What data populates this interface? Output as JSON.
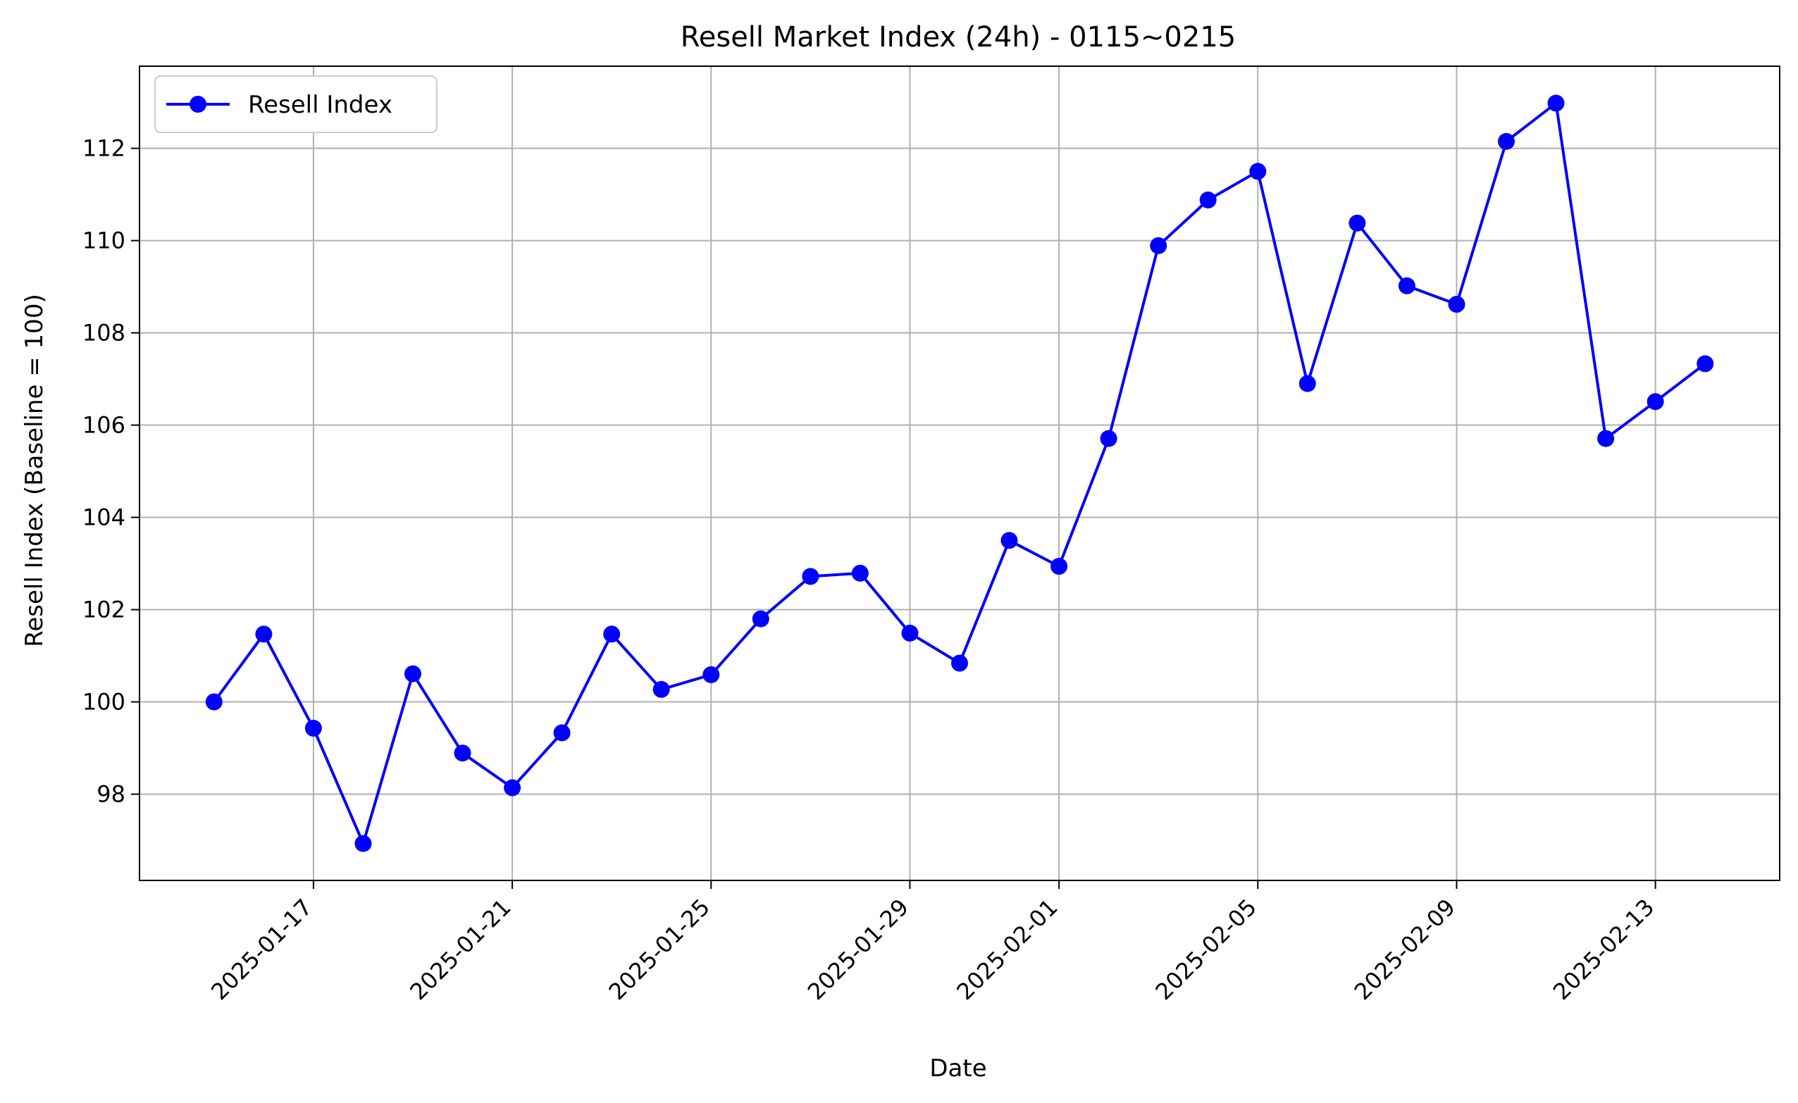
{
  "chart_data": {
    "type": "line",
    "title": "Resell Market Index (24h) - 0115~0215",
    "xlabel": "Date",
    "ylabel": "Resell Index (Baseline = 100)",
    "x": [
      "2025-01-15",
      "2025-01-16",
      "2025-01-17",
      "2025-01-18",
      "2025-01-19",
      "2025-01-20",
      "2025-01-21",
      "2025-01-22",
      "2025-01-23",
      "2025-01-24",
      "2025-01-25",
      "2025-01-26",
      "2025-01-27",
      "2025-01-28",
      "2025-01-29",
      "2025-01-30",
      "2025-01-31",
      "2025-02-01",
      "2025-02-02",
      "2025-02-03",
      "2025-02-04",
      "2025-02-05",
      "2025-02-06",
      "2025-02-07",
      "2025-02-08",
      "2025-02-09",
      "2025-02-10",
      "2025-02-11",
      "2025-02-12",
      "2025-02-13",
      "2025-02-14"
    ],
    "series": [
      {
        "name": "Resell Index",
        "color": "#0000ff",
        "marker": "circle",
        "values": [
          100.0,
          101.47,
          99.43,
          96.93,
          100.61,
          98.89,
          98.14,
          99.33,
          101.47,
          100.27,
          100.59,
          101.8,
          102.72,
          102.79,
          101.49,
          100.84,
          103.5,
          102.94,
          105.71,
          109.89,
          110.88,
          111.5,
          106.9,
          110.38,
          109.02,
          108.62,
          112.15,
          112.98,
          105.71,
          106.51,
          107.33
        ]
      }
    ],
    "x_ticks": [
      "2025-01-17",
      "2025-01-21",
      "2025-01-25",
      "2025-01-29",
      "2025-02-01",
      "2025-02-05",
      "2025-02-09",
      "2025-02-13"
    ],
    "y_ticks": [
      98,
      100,
      102,
      104,
      106,
      108,
      110,
      112
    ],
    "ylim": [
      96.13,
      113.78
    ],
    "xlim": [
      "2025-01-13T12:00",
      "2025-02-15T12:00"
    ],
    "grid": true,
    "legend_position": "top-left"
  }
}
